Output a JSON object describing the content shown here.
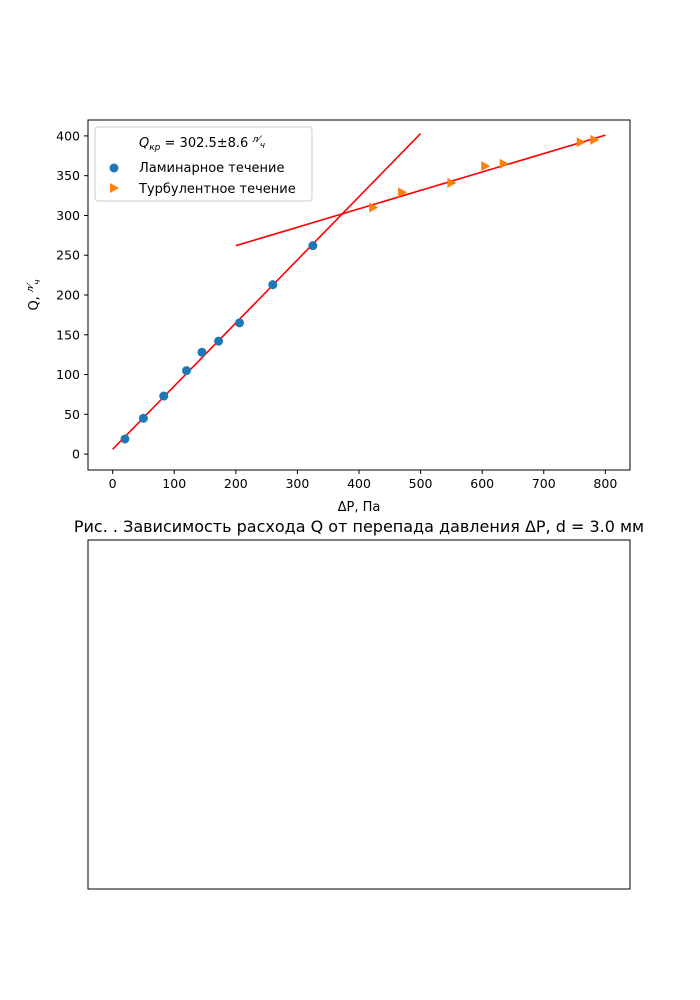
{
  "caption": "Рис.  . Зависимость расхода Q от перепада давления ΔP, d = 3.0 мм",
  "chart_data": [
    {
      "type": "scatter",
      "xlabel": "ΔP, Па",
      "ylabel_main": "Q, ",
      "ylabel_unit_num": "л",
      "ylabel_unit_den": "ч",
      "xlim": [
        -40,
        840
      ],
      "ylim": [
        -20,
        420
      ],
      "xticks": [
        0,
        100,
        200,
        300,
        400,
        500,
        600,
        700,
        800
      ],
      "yticks": [
        0,
        50,
        100,
        150,
        200,
        250,
        300,
        350,
        400
      ],
      "legend_position": "upper-left",
      "legend_title_sym": "Q",
      "legend_title_sub": "кр",
      "legend_title_value": " = 302.5±8.6 ",
      "legend_title_unit_num": "л",
      "legend_title_unit_den": "ч",
      "series": [
        {
          "name": "Ламинарное течение",
          "marker": "circle",
          "color": "#1f77b4",
          "points": [
            [
              20,
              19
            ],
            [
              50,
              45
            ],
            [
              83,
              73
            ],
            [
              120,
              105
            ],
            [
              145,
              128
            ],
            [
              172,
              142
            ],
            [
              206,
              165
            ],
            [
              260,
              213
            ],
            [
              325,
              262
            ]
          ]
        },
        {
          "name": "Турбулентное течение",
          "marker": "triangle-right",
          "color": "#ff7f0e",
          "points": [
            [
              423,
              310
            ],
            [
              470,
              329
            ],
            [
              550,
              341
            ],
            [
              605,
              362
            ],
            [
              635,
              365
            ],
            [
              760,
              392
            ],
            [
              782,
              395
            ]
          ]
        }
      ],
      "fit_lines": [
        {
          "color": "#ff0000",
          "from": [
            0,
            6
          ],
          "to": [
            500,
            403
          ]
        },
        {
          "color": "#ff0000",
          "from": [
            200,
            262
          ],
          "to": [
            800,
            401
          ]
        }
      ]
    },
    {
      "type": "empty",
      "xlabel": "",
      "ylabel": ""
    }
  ]
}
